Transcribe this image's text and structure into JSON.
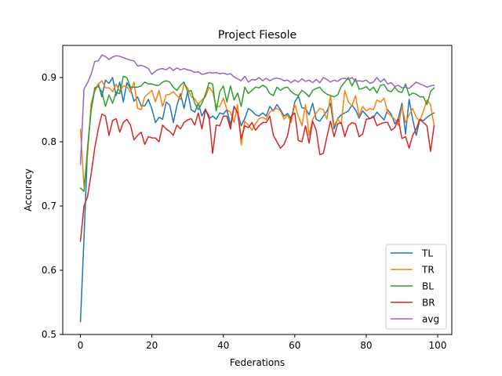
{
  "chart_data": {
    "type": "line",
    "title": "Project Fiesole",
    "xlabel": "Federations",
    "ylabel": "Accuracy",
    "xlim": [
      -4.95,
      103.95
    ],
    "ylim": [
      0.5,
      0.95
    ],
    "xticks": [
      0,
      20,
      40,
      60,
      80,
      100
    ],
    "yticks": [
      0.5,
      0.6,
      0.7,
      0.8,
      0.9
    ],
    "xtick_labels": [
      "0",
      "20",
      "40",
      "60",
      "80",
      "100"
    ],
    "ytick_labels": [
      "0.5",
      "0.6",
      "0.7",
      "0.8",
      "0.9"
    ],
    "legend_position": "lower-right",
    "series": [
      {
        "name": "TL",
        "color": "#1f77b4",
        "values": [
          0.52,
          0.65,
          0.79,
          0.85,
          0.88,
          0.89,
          0.87,
          0.896,
          0.891,
          0.9,
          0.872,
          0.893,
          0.862,
          0.892,
          0.883,
          0.863,
          0.87,
          0.856,
          0.856,
          0.866,
          0.851,
          0.83,
          0.838,
          0.835,
          0.862,
          0.857,
          0.83,
          0.856,
          0.875,
          0.852,
          0.878,
          0.85,
          0.846,
          0.86,
          0.84,
          0.851,
          0.836,
          0.84,
          0.835,
          0.845,
          0.843,
          0.85,
          0.826,
          0.855,
          0.846,
          0.825,
          0.836,
          0.852,
          0.848,
          0.842,
          0.84,
          0.845,
          0.84,
          0.855,
          0.848,
          0.858,
          0.85,
          0.84,
          0.844,
          0.835,
          0.862,
          0.871,
          0.853,
          0.852,
          0.842,
          0.86,
          0.835,
          0.832,
          0.84,
          0.848,
          0.86,
          0.82,
          0.836,
          0.842,
          0.845,
          0.848,
          0.857,
          0.85,
          0.837,
          0.848,
          0.842,
          0.836,
          0.838,
          0.846,
          0.84,
          0.834,
          0.85,
          0.843,
          0.828,
          0.837,
          0.86,
          0.812,
          0.866,
          0.835,
          0.81,
          0.835,
          0.833,
          0.838,
          0.842,
          0.845
        ]
      },
      {
        "name": "TR",
        "color": "#ff7f0e",
        "values": [
          0.82,
          0.73,
          0.78,
          0.86,
          0.878,
          0.89,
          0.895,
          0.884,
          0.884,
          0.878,
          0.89,
          0.878,
          0.887,
          0.886,
          0.877,
          0.893,
          0.852,
          0.85,
          0.87,
          0.875,
          0.88,
          0.862,
          0.88,
          0.855,
          0.873,
          0.874,
          0.878,
          0.872,
          0.866,
          0.89,
          0.884,
          0.87,
          0.867,
          0.858,
          0.865,
          0.87,
          0.885,
          0.878,
          0.855,
          0.855,
          0.868,
          0.85,
          0.846,
          0.83,
          0.858,
          0.795,
          0.832,
          0.826,
          0.818,
          0.828,
          0.836,
          0.838,
          0.835,
          0.846,
          0.85,
          0.852,
          0.848,
          0.835,
          0.842,
          0.83,
          0.858,
          0.84,
          0.825,
          0.858,
          0.81,
          0.835,
          0.845,
          0.852,
          0.85,
          0.835,
          0.872,
          0.825,
          0.835,
          0.828,
          0.88,
          0.862,
          0.856,
          0.872,
          0.84,
          0.855,
          0.848,
          0.852,
          0.85,
          0.865,
          0.862,
          0.868,
          0.845,
          0.84,
          0.835,
          0.825,
          0.855,
          0.83,
          0.842,
          0.852,
          0.838,
          0.832,
          0.848,
          0.865,
          0.858,
          0.825
        ]
      },
      {
        "name": "BL",
        "color": "#2ca02c",
        "values": [
          0.728,
          0.723,
          0.79,
          0.85,
          0.884,
          0.886,
          0.878,
          0.855,
          0.873,
          0.86,
          0.877,
          0.875,
          0.902,
          0.9,
          0.885,
          0.885,
          0.885,
          0.887,
          0.893,
          0.89,
          0.89,
          0.888,
          0.888,
          0.893,
          0.895,
          0.893,
          0.885,
          0.88,
          0.888,
          0.893,
          0.878,
          0.88,
          0.86,
          0.85,
          0.86,
          0.874,
          0.892,
          0.89,
          0.848,
          0.878,
          0.887,
          0.862,
          0.887,
          0.865,
          0.876,
          0.855,
          0.885,
          0.875,
          0.88,
          0.885,
          0.884,
          0.888,
          0.885,
          0.875,
          0.872,
          0.885,
          0.88,
          0.884,
          0.885,
          0.878,
          0.874,
          0.872,
          0.88,
          0.876,
          0.87,
          0.88,
          0.883,
          0.885,
          0.878,
          0.874,
          0.872,
          0.87,
          0.873,
          0.886,
          0.893,
          0.9,
          0.887,
          0.898,
          0.882,
          0.883,
          0.886,
          0.88,
          0.885,
          0.876,
          0.888,
          0.889,
          0.88,
          0.878,
          0.885,
          0.878,
          0.877,
          0.89,
          0.872,
          0.876,
          0.874,
          0.87,
          0.87,
          0.858,
          0.878,
          0.884
        ]
      },
      {
        "name": "BR",
        "color": "#d62728",
        "values": [
          0.645,
          0.7,
          0.715,
          0.75,
          0.79,
          0.82,
          0.843,
          0.84,
          0.81,
          0.833,
          0.836,
          0.815,
          0.83,
          0.835,
          0.826,
          0.803,
          0.81,
          0.815,
          0.796,
          0.808,
          0.806,
          0.806,
          0.8,
          0.826,
          0.82,
          0.816,
          0.81,
          0.826,
          0.82,
          0.83,
          0.834,
          0.836,
          0.826,
          0.845,
          0.82,
          0.85,
          0.84,
          0.782,
          0.826,
          0.825,
          0.84,
          0.84,
          0.82,
          0.855,
          0.845,
          0.805,
          0.825,
          0.822,
          0.83,
          0.818,
          0.825,
          0.83,
          0.83,
          0.84,
          0.81,
          0.8,
          0.79,
          0.796,
          0.81,
          0.84,
          0.845,
          0.802,
          0.8,
          0.825,
          0.798,
          0.832,
          0.818,
          0.78,
          0.782,
          0.808,
          0.832,
          0.808,
          0.828,
          0.83,
          0.808,
          0.825,
          0.83,
          0.828,
          0.808,
          0.812,
          0.835,
          0.836,
          0.84,
          0.825,
          0.828,
          0.83,
          0.83,
          0.818,
          0.822,
          0.835,
          0.805,
          0.808,
          0.79,
          0.81,
          0.82,
          0.835,
          0.83,
          0.825,
          0.785,
          0.825
        ]
      },
      {
        "name": "avg",
        "color": "#9467bd",
        "values": [
          0.765,
          0.882,
          0.892,
          0.905,
          0.925,
          0.926,
          0.935,
          0.933,
          0.928,
          0.932,
          0.934,
          0.933,
          0.931,
          0.929,
          0.927,
          0.926,
          0.918,
          0.919,
          0.917,
          0.914,
          0.905,
          0.91,
          0.913,
          0.914,
          0.912,
          0.916,
          0.911,
          0.915,
          0.912,
          0.914,
          0.912,
          0.911,
          0.908,
          0.909,
          0.905,
          0.906,
          0.908,
          0.907,
          0.908,
          0.906,
          0.907,
          0.905,
          0.906,
          0.901,
          0.898,
          0.895,
          0.902,
          0.893,
          0.897,
          0.896,
          0.9,
          0.895,
          0.899,
          0.895,
          0.898,
          0.899,
          0.898,
          0.895,
          0.896,
          0.892,
          0.896,
          0.893,
          0.898,
          0.894,
          0.896,
          0.892,
          0.897,
          0.892,
          0.9,
          0.897,
          0.893,
          0.896,
          0.894,
          0.898,
          0.899,
          0.897,
          0.9,
          0.894,
          0.895,
          0.894,
          0.896,
          0.891,
          0.893,
          0.9,
          0.893,
          0.898,
          0.89,
          0.892,
          0.886,
          0.888,
          0.884,
          0.885,
          0.883,
          0.888,
          0.893,
          0.89,
          0.888,
          0.885,
          0.887,
          0.888
        ]
      }
    ]
  }
}
